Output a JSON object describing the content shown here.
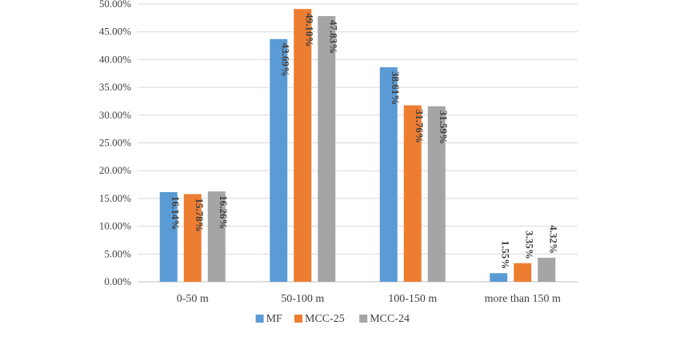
{
  "chart_data": {
    "type": "bar",
    "categories": [
      "0-50 m",
      "50-100 m",
      "100-150 m",
      "more than 150 m"
    ],
    "series": [
      {
        "name": "MF",
        "color": "#5B9BD5",
        "values": [
          16.14,
          43.69,
          38.61,
          1.55
        ],
        "labels": [
          "16.14%",
          "43.69%",
          "38.61%",
          "1.55%"
        ]
      },
      {
        "name": "MCC-25",
        "color": "#ED7D31",
        "values": [
          15.78,
          49.1,
          31.76,
          3.35
        ],
        "labels": [
          "15.78%",
          "49.10%",
          "31.76%",
          "3.35%"
        ]
      },
      {
        "name": "MCC-24",
        "color": "#A5A5A5",
        "values": [
          16.26,
          47.83,
          31.59,
          4.32
        ],
        "labels": [
          "16.26%",
          "47.83%",
          "31.59%",
          "4.32%"
        ]
      }
    ],
    "y_ticks": [
      "0.00%",
      "5.00%",
      "10.00%",
      "15.00%",
      "20.00%",
      "25.00%",
      "30.00%",
      "35.00%",
      "40.00%",
      "45.00%",
      "50.00%"
    ],
    "ylim": [
      0,
      50
    ],
    "grid": true,
    "legend_position": "bottom",
    "title": "",
    "xlabel": "",
    "ylabel": ""
  }
}
